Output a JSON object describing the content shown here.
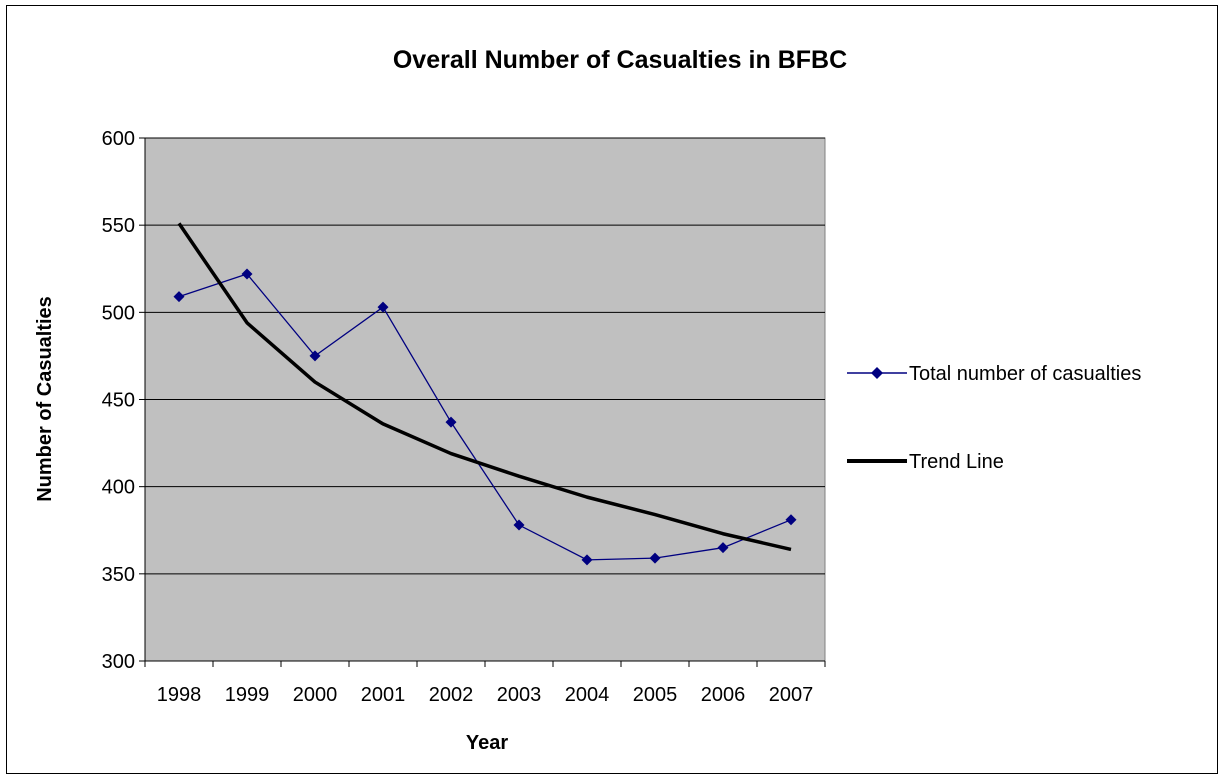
{
  "chart_data": {
    "type": "line",
    "title": "Overall Number of Casualties in BFBC",
    "xlabel": "Year",
    "ylabel": "Number of Casualties",
    "categories": [
      "1998",
      "1999",
      "2000",
      "2001",
      "2002",
      "2003",
      "2004",
      "2005",
      "2006",
      "2007"
    ],
    "ylim": [
      300,
      600
    ],
    "yticks": [
      300,
      350,
      400,
      450,
      500,
      550,
      600
    ],
    "grid": true,
    "plot_background": "#c0c0c0",
    "legend_position": "right",
    "series": [
      {
        "name": "Total number of casualties",
        "values": [
          509,
          522,
          475,
          503,
          437,
          378,
          358,
          359,
          365,
          381
        ],
        "color": "#000080",
        "marker": "diamond"
      },
      {
        "name": "Trend Line",
        "values": [
          551,
          494,
          460,
          436,
          419,
          406,
          394,
          384,
          373,
          364
        ],
        "color": "#000000",
        "marker": "none"
      }
    ]
  }
}
